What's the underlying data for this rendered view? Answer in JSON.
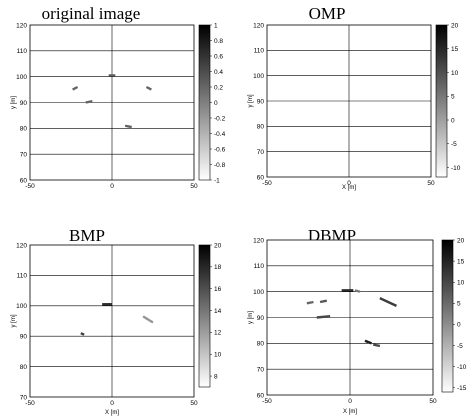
{
  "chart_data": [
    {
      "type": "scatter",
      "title": "original image",
      "xlabel": "",
      "ylabel": "y [m]",
      "xlim": [
        -50,
        50
      ],
      "ylim": [
        60,
        120
      ],
      "xticks": [
        "-50",
        "0",
        "50"
      ],
      "yticks": [
        "60",
        "70",
        "80",
        "90",
        "100",
        "110",
        "120"
      ],
      "grid": true,
      "colorbar": {
        "range": [
          -1,
          1
        ],
        "ticks": [
          "1",
          "0.8",
          "0.6",
          "0.4",
          "0.2",
          "0",
          "-0.2",
          "-0.4",
          "-0.6",
          "-0.8",
          "-1"
        ]
      },
      "segments": [
        {
          "x1": -24,
          "y1": 95,
          "x2": -21,
          "y2": 96,
          "value": 0.2
        },
        {
          "x1": -16,
          "y1": 90,
          "x2": -12,
          "y2": 90.5,
          "value": 0.2
        },
        {
          "x1": -2,
          "y1": 100.5,
          "x2": 2,
          "y2": 100.5,
          "value": 0.2
        },
        {
          "x1": 21,
          "y1": 96,
          "x2": 24,
          "y2": 95,
          "value": 0.2
        },
        {
          "x1": 8,
          "y1": 81,
          "x2": 12,
          "y2": 80.5,
          "value": 0.2
        }
      ]
    },
    {
      "type": "scatter",
      "title": "OMP",
      "xlabel": "X [m]",
      "ylabel": "y [m]",
      "xlim": [
        -50,
        50
      ],
      "ylim": [
        60,
        120
      ],
      "xticks": [
        "-50",
        "0",
        "50"
      ],
      "yticks": [
        "60",
        "70",
        "80",
        "90",
        "100",
        "110",
        "120"
      ],
      "grid": true,
      "colorbar": {
        "range": [
          -12,
          20
        ],
        "ticks": [
          "20",
          "15",
          "10",
          "5",
          "0",
          "-5",
          "-10"
        ]
      },
      "segments": []
    },
    {
      "type": "scatter",
      "title": "BMP",
      "xlabel": "X [m]",
      "ylabel": "y [m]",
      "xlim": [
        -50,
        50
      ],
      "ylim": [
        70,
        120
      ],
      "xticks": [
        "-50",
        "0",
        "50"
      ],
      "yticks": [
        "70",
        "80",
        "90",
        "100",
        "110",
        "120"
      ],
      "grid": true,
      "colorbar": {
        "range": [
          7,
          20
        ],
        "ticks": [
          "20",
          "18",
          "16",
          "14",
          "12",
          "10",
          "8"
        ]
      },
      "segments": [
        {
          "x1": -6,
          "y1": 100.5,
          "x2": 0,
          "y2": 100.5,
          "value": 18
        },
        {
          "x1": 19,
          "y1": 96.5,
          "x2": 25,
          "y2": 94.5,
          "value": 12
        },
        {
          "x1": -19,
          "y1": 91,
          "x2": -17,
          "y2": 90.5,
          "value": 17
        }
      ]
    },
    {
      "type": "scatter",
      "title": "DBMP",
      "xlabel": "X [m]",
      "ylabel": "y [m]",
      "xlim": [
        -50,
        50
      ],
      "ylim": [
        60,
        120
      ],
      "xticks": [
        "-50",
        "0",
        "50"
      ],
      "yticks": [
        "60",
        "70",
        "80",
        "90",
        "100",
        "110",
        "120"
      ],
      "grid": true,
      "colorbar": {
        "range": [
          -16,
          20
        ],
        "ticks": [
          "20",
          "15",
          "10",
          "5",
          "0",
          "-5",
          "-10",
          "-15"
        ]
      },
      "segments": [
        {
          "x1": -5,
          "y1": 100.5,
          "x2": 2,
          "y2": 100.5,
          "value": 15
        },
        {
          "x1": 3,
          "y1": 100.5,
          "x2": 6,
          "y2": 100,
          "value": 2
        },
        {
          "x1": -26,
          "y1": 95.5,
          "x2": -22,
          "y2": 96,
          "value": 5
        },
        {
          "x1": -18,
          "y1": 96,
          "x2": -14,
          "y2": 96.5,
          "value": 8
        },
        {
          "x1": 18,
          "y1": 97.5,
          "x2": 28,
          "y2": 94.5,
          "value": 12
        },
        {
          "x1": -20,
          "y1": 90,
          "x2": -12,
          "y2": 90.5,
          "value": 10
        },
        {
          "x1": 9,
          "y1": 81,
          "x2": 13,
          "y2": 80,
          "value": 17
        },
        {
          "x1": 14,
          "y1": 79.5,
          "x2": 18,
          "y2": 79,
          "value": 10
        }
      ]
    }
  ]
}
